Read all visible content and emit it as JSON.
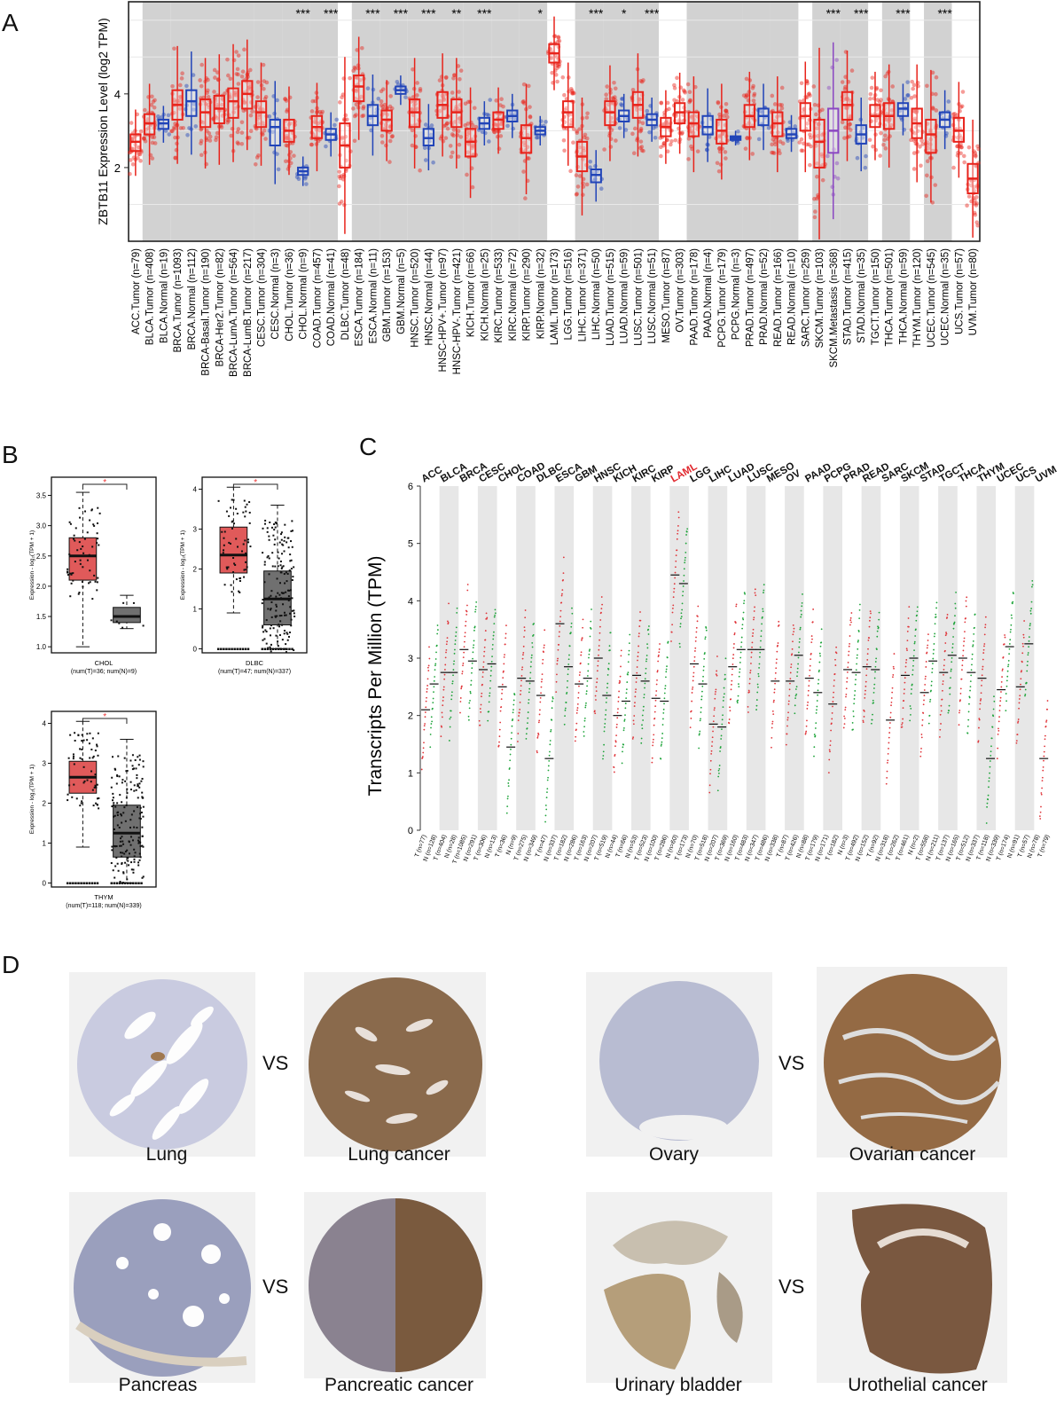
{
  "panels": {
    "a": "A",
    "b": "B",
    "c": "C",
    "d": "D"
  },
  "colors": {
    "tumor": "#e8231b",
    "normal": "#2144b8",
    "metastasis": "#8b47c2",
    "band": "#d2d2d2",
    "c_tumor": "#e0353a",
    "c_normal": "#1ea43a"
  },
  "chart_data": [
    {
      "type": "box",
      "panel": "A",
      "ylabel": "ZBTB11 Expression Level (log2 TPM)",
      "yticks": [
        2,
        4
      ],
      "ylim": [
        0,
        6.5
      ],
      "categories": [
        "ACC.Tumor (n=79)",
        "BLCA.Tumor (n=408)",
        "BLCA.Normal (n=19)",
        "BRCA.Tumor (n=1093)",
        "BRCA.Normal (n=112)",
        "BRCA-Basal.Tumor (n=190)",
        "BRCA-Her2.Tumor (n=82)",
        "BRCA-LumA.Tumor (n=564)",
        "BRCA-LumB.Tumor (n=217)",
        "CESC.Tumor (n=304)",
        "CESC.Normal (n=3)",
        "CHOL.Tumor (n=36)",
        "CHOL.Normal (n=9)",
        "COAD.Tumor (n=457)",
        "COAD.Normal (n=41)",
        "DLBC.Tumor (n=48)",
        "ESCA.Tumor (n=184)",
        "ESCA.Normal (n=11)",
        "GBM.Tumor (n=153)",
        "GBM.Normal (n=5)",
        "HNSC.Tumor (n=520)",
        "HNSC.Normal (n=44)",
        "HNSC-HPV+.Tumor (n=97)",
        "HNSC-HPV-.Tumor (n=421)",
        "KICH.Tumor (n=66)",
        "KICH.Normal (n=25)",
        "KIRC.Tumor (n=533)",
        "KIRC.Normal (n=72)",
        "KIRP.Tumor (n=290)",
        "KIRP.Normal (n=32)",
        "LAML.Tumor (n=173)",
        "LGG.Tumor (n=516)",
        "LIHC.Tumor (n=371)",
        "LIHC.Normal (n=50)",
        "LUAD.Tumor (n=515)",
        "LUAD.Normal (n=59)",
        "LUSC.Tumor (n=501)",
        "LUSC.Normal (n=51)",
        "MESO.Tumor (n=87)",
        "OV.Tumor (n=303)",
        "PAAD.Tumor (n=178)",
        "PAAD.Normal (n=4)",
        "PCPG.Tumor (n=179)",
        "PCPG.Normal (n=3)",
        "PRAD.Tumor (n=497)",
        "PRAD.Normal (n=52)",
        "READ.Tumor (n=166)",
        "READ.Normal (n=10)",
        "SARC.Tumor (n=259)",
        "SKCM.Tumor (n=103)",
        "SKCM.Metastasis (n=368)",
        "STAD.Tumor (n=415)",
        "STAD.Normal (n=35)",
        "TGCT.Tumor (n=150)",
        "THCA.Tumor (n=501)",
        "THCA.Normal (n=59)",
        "THYM.Tumor (n=120)",
        "UCEC.Tumor (n=545)",
        "UCEC.Normal (n=35)",
        "UCS.Tumor (n=57)",
        "UVM.Tumor (n=80)"
      ],
      "groups": [
        "t",
        "t",
        "n",
        "t",
        "n",
        "t",
        "t",
        "t",
        "t",
        "t",
        "n",
        "t",
        "n",
        "t",
        "n",
        "t",
        "t",
        "n",
        "t",
        "n",
        "t",
        "n",
        "t",
        "t",
        "t",
        "n",
        "t",
        "n",
        "t",
        "n",
        "t",
        "t",
        "t",
        "n",
        "t",
        "n",
        "t",
        "n",
        "t",
        "t",
        "t",
        "n",
        "t",
        "n",
        "t",
        "n",
        "t",
        "n",
        "t",
        "t",
        "m",
        "t",
        "n",
        "t",
        "t",
        "n",
        "t",
        "t",
        "n",
        "t",
        "t"
      ],
      "medians": [
        2.7,
        3.2,
        3.2,
        3.7,
        3.8,
        3.5,
        3.6,
        3.8,
        4.0,
        3.5,
        3.1,
        3.0,
        1.9,
        3.1,
        2.9,
        2.6,
        4.2,
        3.4,
        3.3,
        4.1,
        3.5,
        2.8,
        3.7,
        3.5,
        2.7,
        3.2,
        3.3,
        3.4,
        2.8,
        3.0,
        5.1,
        3.5,
        2.3,
        1.8,
        3.5,
        3.4,
        3.7,
        3.3,
        3.1,
        3.5,
        3.2,
        3.1,
        3.0,
        2.8,
        3.4,
        3.4,
        3.2,
        2.9,
        3.4,
        2.7,
        3.0,
        3.7,
        2.9,
        3.4,
        3.4,
        3.6,
        3.2,
        2.9,
        3.3,
        3.0,
        1.7
      ],
      "q1": [
        2.45,
        2.9,
        3.05,
        3.3,
        3.4,
        3.1,
        3.2,
        3.35,
        3.6,
        3.1,
        2.6,
        2.7,
        1.8,
        2.8,
        2.75,
        2.0,
        3.8,
        3.15,
        3.0,
        4.0,
        3.1,
        2.6,
        3.35,
        3.1,
        2.3,
        3.05,
        3.05,
        3.25,
        2.4,
        2.9,
        4.85,
        3.1,
        1.9,
        1.6,
        3.15,
        3.25,
        3.35,
        3.15,
        2.85,
        3.2,
        2.85,
        2.9,
        2.65,
        2.75,
        3.1,
        3.15,
        2.85,
        2.8,
        3.0,
        2.0,
        2.4,
        3.3,
        2.65,
        3.1,
        3.05,
        3.4,
        2.8,
        2.4,
        3.1,
        2.7,
        1.3
      ],
      "q3": [
        2.9,
        3.45,
        3.3,
        4.1,
        4.1,
        3.85,
        3.95,
        4.15,
        4.35,
        3.8,
        3.3,
        3.3,
        2.0,
        3.4,
        3.05,
        3.2,
        4.5,
        3.7,
        3.55,
        4.2,
        3.85,
        3.05,
        4.05,
        3.85,
        3.05,
        3.35,
        3.5,
        3.55,
        3.15,
        3.1,
        5.35,
        3.8,
        2.7,
        1.95,
        3.8,
        3.55,
        4.05,
        3.45,
        3.35,
        3.75,
        3.5,
        3.4,
        3.3,
        2.85,
        3.7,
        3.6,
        3.5,
        3.05,
        3.75,
        3.3,
        3.6,
        4.05,
        3.15,
        3.7,
        3.75,
        3.75,
        3.6,
        3.3,
        3.5,
        3.35,
        2.1
      ],
      "significance": [
        {
          "index": 12,
          "label": "***"
        },
        {
          "index": 14,
          "label": "***"
        },
        {
          "index": 17,
          "label": "***"
        },
        {
          "index": 19,
          "label": "***"
        },
        {
          "index": 21,
          "label": "***"
        },
        {
          "index": 23,
          "label": "**"
        },
        {
          "index": 25,
          "label": "***"
        },
        {
          "index": 29,
          "label": "*"
        },
        {
          "index": 33,
          "label": "***"
        },
        {
          "index": 35,
          "label": "*"
        },
        {
          "index": 37,
          "label": "***"
        },
        {
          "index": 50,
          "label": "***"
        },
        {
          "index": 52,
          "label": "***"
        },
        {
          "index": 55,
          "label": "***"
        },
        {
          "index": 58,
          "label": "***"
        }
      ],
      "bands": [
        [
          1,
          2
        ],
        [
          3,
          8
        ],
        [
          9,
          10
        ],
        [
          11,
          12
        ],
        [
          13,
          14
        ],
        [
          16,
          17
        ],
        [
          18,
          19
        ],
        [
          20,
          23
        ],
        [
          24,
          25
        ],
        [
          26,
          27
        ],
        [
          28,
          29
        ],
        [
          32,
          33
        ],
        [
          34,
          35
        ],
        [
          36,
          37
        ],
        [
          40,
          41
        ],
        [
          42,
          43
        ],
        [
          44,
          45
        ],
        [
          46,
          47
        ],
        [
          49,
          50
        ],
        [
          51,
          52
        ],
        [
          54,
          55
        ],
        [
          57,
          58
        ]
      ]
    },
    {
      "type": "box",
      "panel": "B",
      "subplots": [
        {
          "label": "CHOL",
          "counts": "(num(T)=36; num(N)=9)",
          "ylabel": "Expression - log₂(TPM + 1)",
          "yticks": [
            "1.0",
            "1.5",
            "2.0",
            "2.5",
            "3.0",
            "3.5"
          ],
          "ylim": [
            0.9,
            3.8
          ],
          "tumor": {
            "q1": 2.1,
            "median": 2.5,
            "q3": 2.8,
            "min": 1.0,
            "max": 3.55
          },
          "normal": {
            "q1": 1.4,
            "median": 1.5,
            "q3": 1.65,
            "min": 1.3,
            "max": 1.85
          },
          "sig": "*"
        },
        {
          "label": "DLBC",
          "counts": "(num(T)=47; num(N)=337)",
          "ylabel": "Expression - log₂(TPM + 1)",
          "yticks": [
            "0",
            "1",
            "2",
            "3",
            "4"
          ],
          "ylim": [
            -0.1,
            4.3
          ],
          "tumor": {
            "q1": 1.9,
            "median": 2.35,
            "q3": 3.05,
            "min": 0.9,
            "max": 4.05
          },
          "normal": {
            "q1": 0.6,
            "median": 1.25,
            "q3": 1.95,
            "min": 0.0,
            "max": 3.6
          },
          "sig": "*"
        },
        {
          "label": "THYM",
          "counts": "(num(T)=118; num(N)=339)",
          "ylabel": "Expression - log₂(TPM + 1)",
          "yticks": [
            "0",
            "1",
            "2",
            "3",
            "4"
          ],
          "ylim": [
            -0.1,
            4.3
          ],
          "tumor": {
            "q1": 2.25,
            "median": 2.65,
            "q3": 3.05,
            "min": 0.9,
            "max": 4.05
          },
          "normal": {
            "q1": 0.65,
            "median": 1.25,
            "q3": 1.95,
            "min": 0.0,
            "max": 3.6
          },
          "sig": "*"
        }
      ]
    },
    {
      "type": "dotplot",
      "panel": "C",
      "ylabel": "Transcripts Per Million (TPM)",
      "yticks": [
        0,
        1,
        2,
        3,
        4,
        5,
        6
      ],
      "ylim": [
        0,
        6
      ],
      "cancers": [
        "ACC",
        "BLCA",
        "BRCA",
        "CESC",
        "CHOL",
        "COAD",
        "DLBC",
        "ESCA",
        "GBM",
        "HNSC",
        "KICH",
        "KIRC",
        "KIRP",
        "LAML",
        "LGG",
        "LIHC",
        "LUAD",
        "LUSC",
        "MESO",
        "OV",
        "PAAD",
        "PCPG",
        "PRAD",
        "READ",
        "SARC",
        "SKCM",
        "STAD",
        "TGCT",
        "THCA",
        "THYM",
        "UCEC",
        "UCS",
        "UVM"
      ],
      "highlight": "LAML",
      "tumor_medians": [
        2.1,
        2.75,
        3.15,
        2.8,
        2.5,
        2.65,
        2.35,
        3.6,
        2.55,
        3.0,
        2.0,
        2.7,
        2.3,
        4.45,
        2.9,
        1.85,
        2.85,
        3.15,
        2.6,
        2.6,
        2.65,
        2.2,
        2.8,
        2.85,
        1.92,
        2.7,
        2.4,
        2.75,
        3.0,
        2.65,
        2.45,
        2.5,
        1.25
      ],
      "normal_medians": [
        2.55,
        2.75,
        2.95,
        2.9,
        1.45,
        2.6,
        1.25,
        2.85,
        2.65,
        2.35,
        2.25,
        2.6,
        2.25,
        4.3,
        2.55,
        1.8,
        3.15,
        3.15,
        null,
        3.05,
        2.4,
        null,
        2.75,
        2.8,
        null,
        3.0,
        2.95,
        3.05,
        2.75,
        1.25,
        3.2,
        3.25,
        null
      ],
      "xlabels": [
        "T (n=77)",
        "N (n=128)",
        "T (n=404)",
        "N (n=28)",
        "T (n=1085)",
        "N (n=291)",
        "T (n=306)",
        "N (n=13)",
        "T (n=36)",
        "N (n=9)",
        "T (n=275)",
        "N (n=349)",
        "T (n=47)",
        "N (n=337)",
        "T (n=182)",
        "N (n=286)",
        "T (n=163)",
        "N (n=207)",
        "T (n=519)",
        "N (n=44)",
        "T (n=66)",
        "N (n=53)",
        "T (n=523)",
        "N (n=100)",
        "T (n=286)",
        "N (n=60)",
        "T (n=173)",
        "N (n=70)",
        "T (n=518)",
        "N (n=207)",
        "T (n=369)",
        "N (n=160)",
        "T (n=483)",
        "N (n=347)",
        "T (n=486)",
        "N (n=338)",
        "T (n=87)",
        "T (n=426)",
        "N (n=88)",
        "T (n=179)",
        "N (n=171)",
        "T (n=182)",
        "N (n=3)",
        "T (n=492)",
        "N (n=152)",
        "T (n=92)",
        "N (n=318)",
        "T (n=262)",
        "T (n=461)",
        "N (n=2)",
        "T (n=558)",
        "N (n=211)",
        "T (n=137)",
        "N (n=165)",
        "T (n=512)",
        "N (n=337)",
        "T (n=118)",
        "N (n=339)",
        "T (n=174)",
        "N (n=91)",
        "T (n=57)",
        "N (n=78)",
        "T (n=79)"
      ]
    }
  ],
  "tissues": [
    {
      "key": "lung",
      "label": "Lung",
      "vs": "VS"
    },
    {
      "key": "lung-cancer",
      "label": "Lung cancer"
    },
    {
      "key": "ovary",
      "label": "Ovary",
      "vs": "VS"
    },
    {
      "key": "ovarian-cancer",
      "label": "Ovarian cancer"
    },
    {
      "key": "pancreas",
      "label": "Pancreas",
      "vs": "VS"
    },
    {
      "key": "pancreatic-cancer",
      "label": "Pancreatic cancer"
    },
    {
      "key": "urinary-bladder",
      "label": "Urinary bladder",
      "vs": "VS"
    },
    {
      "key": "urothelial-cancer",
      "label": "Urothelial cancer"
    }
  ]
}
